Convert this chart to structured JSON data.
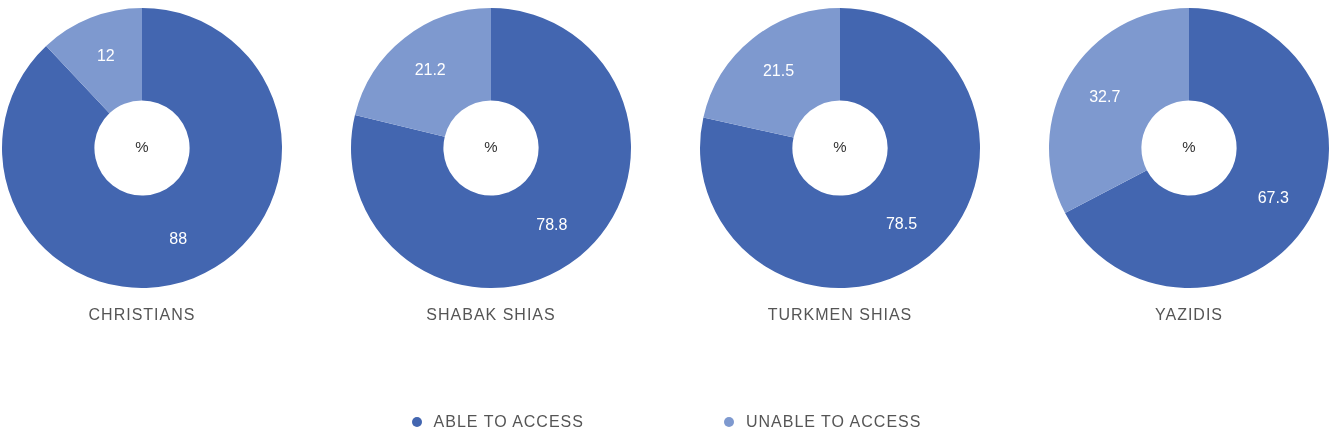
{
  "chart_data": [
    {
      "type": "donut",
      "title": "CHRISTIANS",
      "categories": [
        "ABLE TO ACCESS",
        "UNABLE TO ACCESS"
      ],
      "values": [
        88,
        12
      ],
      "colors": [
        "#4366b0",
        "#7e99cf"
      ],
      "data_labels": true,
      "annotations": [
        "%"
      ],
      "legend": "bottom"
    },
    {
      "type": "donut",
      "title": "SHABAK SHIAS",
      "categories": [
        null,
        null
      ],
      "values": [
        78.8,
        21.2
      ],
      "colors": [
        "#4366b0",
        "#7e99cf"
      ],
      "data_labels": true,
      "annotations": [
        "%"
      ]
    },
    {
      "type": "donut",
      "title": "TURKMEN SHIAS",
      "categories": [
        null,
        null
      ],
      "values": [
        78.5,
        21.5
      ],
      "colors": [
        "#4366b0",
        "#7e99cf"
      ],
      "data_labels": true,
      "annotations": [
        "%"
      ]
    },
    {
      "type": "donut",
      "title": "YAZIDIS",
      "categories": [
        null,
        null
      ],
      "values": [
        67.3,
        32.7
      ],
      "colors": [
        "#4366b0",
        "#7e99cf"
      ],
      "data_labels": true,
      "annotations": [
        "%"
      ]
    }
  ]
}
